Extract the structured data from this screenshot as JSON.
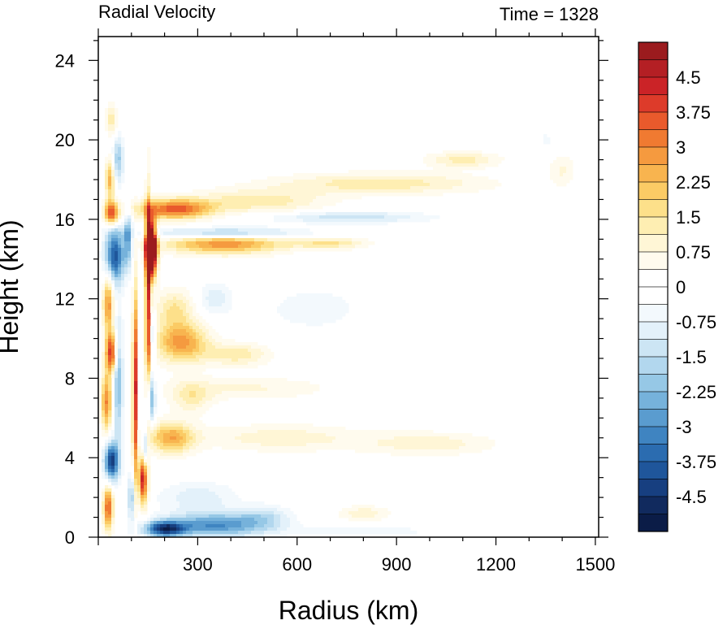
{
  "chart_data": {
    "type": "heatmap",
    "title": "Radial Velocity",
    "subtitle": "Time = 1328",
    "xlabel": "Radius (km)",
    "ylabel": "Height (km)",
    "xlim": [
      0,
      1510
    ],
    "ylim": [
      0,
      25.2
    ],
    "xticks": [
      300,
      600,
      900,
      1200,
      1500
    ],
    "yticks": [
      0,
      4,
      8,
      12,
      16,
      20,
      24
    ],
    "colorbar": {
      "range": [
        -5.25,
        5.25
      ],
      "step": 0.375,
      "tick_values": [
        4.5,
        3.75,
        3,
        2.25,
        1.5,
        0.75,
        0,
        -0.75,
        -1.5,
        -2.25,
        -3,
        -3.75,
        -4.5
      ],
      "tick_labels": [
        "4.5",
        "3.75",
        "3",
        "2.25",
        "1.5",
        "0.75",
        "0",
        "-0.75",
        "-1.5",
        "-2.25",
        "-3",
        "-3.75",
        "-4.5"
      ],
      "colors": [
        "#9b1b1e",
        "#b41f24",
        "#cb2327",
        "#dd3b2a",
        "#e95a2c",
        "#f07a31",
        "#f59a3f",
        "#f8b44f",
        "#fbcb65",
        "#fde08a",
        "#feeeb2",
        "#fff6d6",
        "#fffbee",
        "#ffffff",
        "#ffffff",
        "#f3f9fd",
        "#e3f1fa",
        "#cce5f4",
        "#b2d7ee",
        "#96c8e6",
        "#76b2db",
        "#5a9ccf",
        "#3f84c1",
        "#2b6cb0",
        "#1f569b",
        "#173f80",
        "#112a5e",
        "#0b1c47"
      ]
    },
    "features": [
      {
        "r": 160,
        "z": 14.5,
        "sr": 16,
        "sz": 1.3,
        "v": 9.0
      },
      {
        "r": 150,
        "z": 12.0,
        "sr": 8,
        "sz": 5.0,
        "v": 4.0
      },
      {
        "r": 230,
        "z": 16.5,
        "sr": 110,
        "sz": 0.5,
        "v": 3.5
      },
      {
        "r": 480,
        "z": 16.9,
        "sr": 200,
        "sz": 0.6,
        "v": 1.4
      },
      {
        "r": 850,
        "z": 17.8,
        "sr": 320,
        "sz": 0.55,
        "v": 1.4
      },
      {
        "r": 1100,
        "z": 19.0,
        "sr": 110,
        "sz": 0.4,
        "v": 1.3
      },
      {
        "r": 380,
        "z": 15.3,
        "sr": 220,
        "sz": 0.3,
        "v": -2.5
      },
      {
        "r": 750,
        "z": 16.1,
        "sr": 240,
        "sz": 0.3,
        "v": -1.4
      },
      {
        "r": 380,
        "z": 14.8,
        "sr": 180,
        "sz": 0.55,
        "v": 3.0
      },
      {
        "r": 700,
        "z": 14.8,
        "sr": 110,
        "sz": 0.3,
        "v": 1.5
      },
      {
        "r": 40,
        "z": 16.3,
        "sr": 22,
        "sz": 0.6,
        "v": 4.0
      },
      {
        "r": 50,
        "z": 14.2,
        "sr": 30,
        "sz": 1.4,
        "v": -4.0
      },
      {
        "r": 90,
        "z": 15.0,
        "sr": 12,
        "sz": 1.3,
        "v": -2.5
      },
      {
        "r": 35,
        "z": 18.0,
        "sr": 14,
        "sz": 1.0,
        "v": 2.5
      },
      {
        "r": 60,
        "z": 19.0,
        "sr": 16,
        "sz": 1.2,
        "v": -2.0
      },
      {
        "r": 40,
        "z": 21.0,
        "sr": 18,
        "sz": 0.8,
        "v": 1.4
      },
      {
        "r": 30,
        "z": 11.8,
        "sr": 16,
        "sz": 1.5,
        "v": 3.0
      },
      {
        "r": 40,
        "z": 9.3,
        "sr": 18,
        "sz": 1.0,
        "v": 4.0
      },
      {
        "r": 25,
        "z": 6.8,
        "sr": 16,
        "sz": 1.5,
        "v": 3.0
      },
      {
        "r": 40,
        "z": 3.8,
        "sr": 22,
        "sz": 1.0,
        "v": -4.5
      },
      {
        "r": 30,
        "z": 1.5,
        "sr": 15,
        "sz": 1.2,
        "v": 3.5
      },
      {
        "r": 60,
        "z": 8.0,
        "sr": 14,
        "sz": 3.0,
        "v": -2.5
      },
      {
        "r": 110,
        "z": 7.5,
        "sr": 6,
        "sz": 5.0,
        "v": 5.0
      },
      {
        "r": 140,
        "z": 4.5,
        "sr": 10,
        "sz": 1.0,
        "v": -3.0
      },
      {
        "r": 135,
        "z": 3.0,
        "sr": 14,
        "sz": 1.4,
        "v": 4.5
      },
      {
        "r": 160,
        "z": 7.0,
        "sr": 12,
        "sz": 1.2,
        "v": -2.5
      },
      {
        "r": 165,
        "z": 10.2,
        "sr": 10,
        "sz": 1.0,
        "v": -2.0
      },
      {
        "r": 100,
        "z": 2.0,
        "sr": 10,
        "sz": 1.2,
        "v": -2.0
      },
      {
        "r": 250,
        "z": 9.8,
        "sr": 80,
        "sz": 1.0,
        "v": 2.8
      },
      {
        "r": 420,
        "z": 9.2,
        "sr": 100,
        "sz": 0.6,
        "v": 1.4
      },
      {
        "r": 230,
        "z": 11.5,
        "sr": 60,
        "sz": 1.0,
        "v": 1.5
      },
      {
        "r": 280,
        "z": 7.0,
        "sr": 60,
        "sz": 0.8,
        "v": 1.2
      },
      {
        "r": 220,
        "z": 5.0,
        "sr": 70,
        "sz": 0.8,
        "v": 2.5
      },
      {
        "r": 550,
        "z": 5.0,
        "sr": 250,
        "sz": 0.7,
        "v": 1.0
      },
      {
        "r": 1000,
        "z": 4.7,
        "sr": 200,
        "sz": 0.6,
        "v": 1.0
      },
      {
        "r": 450,
        "z": 7.5,
        "sr": 250,
        "sz": 0.6,
        "v": 0.8
      },
      {
        "r": 350,
        "z": 0.6,
        "sr": 150,
        "sz": 0.6,
        "v": -3.0
      },
      {
        "r": 200,
        "z": 0.4,
        "sr": 60,
        "sz": 0.4,
        "v": -4.0
      },
      {
        "r": 500,
        "z": 1.0,
        "sr": 80,
        "sz": 0.6,
        "v": -1.2
      },
      {
        "r": 300,
        "z": 2.0,
        "sr": 120,
        "sz": 0.8,
        "v": -1.0
      },
      {
        "r": 800,
        "z": 0.3,
        "sr": 250,
        "sz": 0.3,
        "v": -0.6
      },
      {
        "r": 350,
        "z": 12.0,
        "sr": 50,
        "sz": 0.8,
        "v": -1.0
      },
      {
        "r": 650,
        "z": 11.5,
        "sr": 200,
        "sz": 1.5,
        "v": -0.5
      },
      {
        "r": 1400,
        "z": 18.5,
        "sr": 40,
        "sz": 0.8,
        "v": 0.8
      },
      {
        "r": 1350,
        "z": 20.0,
        "sr": 15,
        "sz": 0.4,
        "v": -0.6
      },
      {
        "r": 800,
        "z": 1.2,
        "sr": 80,
        "sz": 0.4,
        "v": 1.0
      }
    ]
  }
}
